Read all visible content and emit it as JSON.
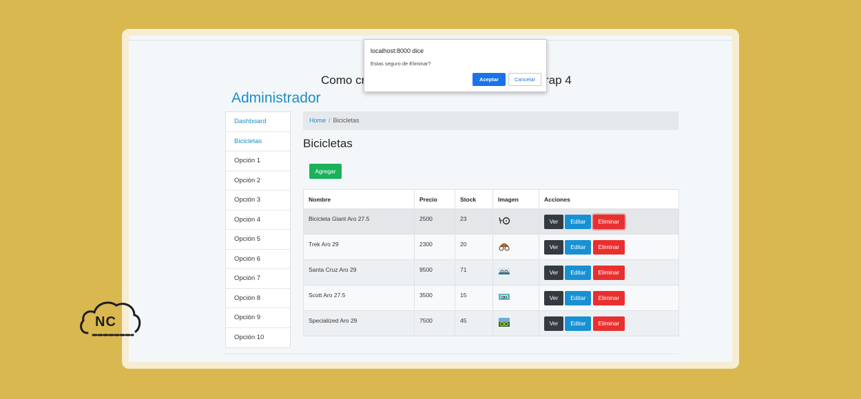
{
  "page": {
    "heading": "Como crear un CRUD con Laravel y Bootstrap 4",
    "brand": "Administrador"
  },
  "sidebar": {
    "items": [
      {
        "label": "Dashboard",
        "link": true
      },
      {
        "label": "Bicicletas",
        "link": true
      },
      {
        "label": "Opción 1",
        "link": false
      },
      {
        "label": "Opción 2",
        "link": false
      },
      {
        "label": "Opción 3",
        "link": false
      },
      {
        "label": "Opción 4",
        "link": false
      },
      {
        "label": "Opción 5",
        "link": false
      },
      {
        "label": "Opción 6",
        "link": false
      },
      {
        "label": "Opción 7",
        "link": false
      },
      {
        "label": "Opción 8",
        "link": false
      },
      {
        "label": "Opción 9",
        "link": false
      },
      {
        "label": "Opción 10",
        "link": false
      }
    ]
  },
  "breadcrumb": {
    "home": "Home",
    "separator": "/",
    "current": "Bicicletas"
  },
  "section": {
    "title": "Bicicletas",
    "add_label": "Agregar"
  },
  "table": {
    "columns": [
      "Nombre",
      "Precio",
      "Stock",
      "Imagen",
      "Acciones"
    ],
    "rows": [
      {
        "nombre": "Bicicleta Giant Aro 27.5",
        "precio": "2500",
        "stock": "23",
        "image_icon": "bike-thumbnail-icon"
      },
      {
        "nombre": "Trek Aro 29",
        "precio": "2300",
        "stock": "20",
        "image_icon": "bike-thumbnail-icon"
      },
      {
        "nombre": "Santa Cruz Aro 29",
        "precio": "9500",
        "stock": "71",
        "image_icon": "bike-thumbnail-icon"
      },
      {
        "nombre": "Scott Aro 27.5",
        "precio": "3500",
        "stock": "15",
        "image_icon": "bike-thumbnail-icon"
      },
      {
        "nombre": "Specialized Aro 29",
        "precio": "7500",
        "stock": "45",
        "image_icon": "bike-thumbnail-icon"
      }
    ],
    "actions": {
      "ver": "Ver",
      "editar": "Editar",
      "eliminar": "Eliminar"
    }
  },
  "dialog": {
    "title": "localhost:8000 dice",
    "message": "Estas seguro de Eliminar?",
    "ok": "Aceptar",
    "cancel": "Cancelar"
  },
  "logo": {
    "text": "NC",
    "icon": "cloud-logo-icon"
  },
  "colors": {
    "background": "#d9b84f",
    "accent": "#1b8fc6",
    "add": "#1bb15a",
    "ver": "#343a40",
    "editar": "#1791d3",
    "eliminar": "#ea2f2f",
    "dialog_ok": "#1a73e8"
  }
}
